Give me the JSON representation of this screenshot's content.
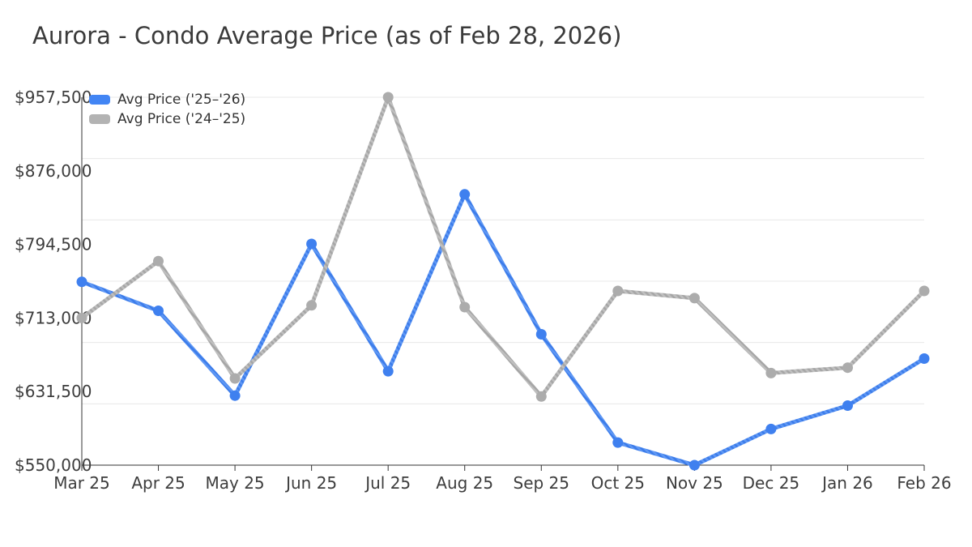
{
  "title": "Aurora - Condo Average Price (as of Feb 28, 2026)",
  "legend": [
    {
      "label": "Avg Price ('25–'26)",
      "color": "#4285f4"
    },
    {
      "label": "Avg Price ('24–'25)",
      "color": "#b3b3b3"
    }
  ],
  "chart_data": {
    "type": "line",
    "title": "Aurora - Condo Average Price (as of Feb 28, 2026)",
    "categories": [
      "Mar 25",
      "Apr 25",
      "May 25",
      "Jun 25",
      "Jul 25",
      "Aug 25",
      "Sep 25",
      "Oct 25",
      "Nov 25",
      "Dec 25",
      "Jan 26",
      "Feb 26"
    ],
    "series": [
      {
        "name": "Avg Price ('25–'26)",
        "color": "#4a88f0",
        "stripe_light": "#5e97f4",
        "stripe_dark": "#3c7cea",
        "dot_color": "#3f80ef",
        "values": [
          753000,
          721000,
          627000,
          795000,
          654000,
          850000,
          695000,
          575000,
          550000,
          590000,
          616000,
          668000
        ]
      },
      {
        "name": "Avg Price ('24–'25)",
        "color": "#b3b3b3",
        "stripe_light": "#bfbfbf",
        "stripe_dark": "#a6a6a6",
        "dot_color": "#acacac",
        "values": [
          713000,
          776000,
          646000,
          727000,
          957500,
          725000,
          626000,
          743000,
          735000,
          652000,
          658000,
          743000
        ]
      }
    ],
    "xlabel": "",
    "ylabel": "",
    "y_ticks": [
      "$957,500",
      "$876,000",
      "$794,500",
      "$713,000",
      "$631,500",
      "$550,000"
    ],
    "y_tick_values": [
      957500,
      876000,
      794500,
      713000,
      631500,
      550000
    ],
    "ylim": [
      550000,
      957500
    ],
    "grid": "horizontal",
    "legend_position": "top-left-inside"
  }
}
